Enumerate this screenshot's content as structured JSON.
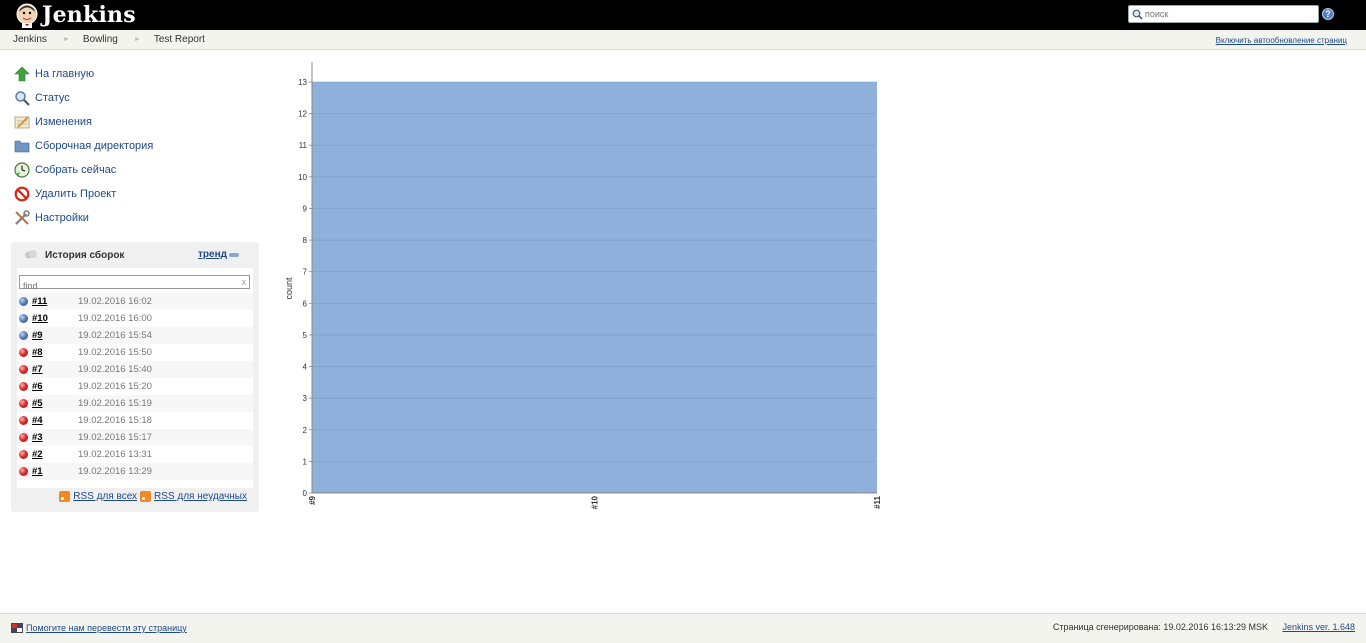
{
  "header": {
    "logo_text": "Jenkins",
    "search_placeholder": "поиск",
    "help_label": "?"
  },
  "breadcrumb": {
    "items": [
      "Jenkins",
      "Bowling",
      "Test Report"
    ],
    "separator": "►",
    "auto_refresh": "Включить автообновление страниц"
  },
  "tasks": [
    {
      "label": "На главную",
      "icon": "up-arrow-icon"
    },
    {
      "label": "Статус",
      "icon": "magnifier-icon"
    },
    {
      "label": "Изменения",
      "icon": "notepad-icon"
    },
    {
      "label": "Сборочная директория",
      "icon": "folder-icon"
    },
    {
      "label": "Собрать сейчас",
      "icon": "clock-icon"
    },
    {
      "label": "Удалить Проект",
      "icon": "no-entry-icon"
    },
    {
      "label": "Настройки",
      "icon": "tools-icon"
    }
  ],
  "history": {
    "title": "История сборок",
    "trend_label": "тренд",
    "find_placeholder": "find",
    "find_clear": "x",
    "builds": [
      {
        "number": "#11",
        "time": "19.02.2016 16:02",
        "status": "blue"
      },
      {
        "number": "#10",
        "time": "19.02.2016 16:00",
        "status": "blue"
      },
      {
        "number": "#9",
        "time": "19.02.2016 15:54",
        "status": "blue"
      },
      {
        "number": "#8",
        "time": "19.02.2016 15:50",
        "status": "red"
      },
      {
        "number": "#7",
        "time": "19.02.2016 15:40",
        "status": "red"
      },
      {
        "number": "#6",
        "time": "19.02.2016 15:20",
        "status": "red"
      },
      {
        "number": "#5",
        "time": "19.02.2016 15:19",
        "status": "red"
      },
      {
        "number": "#4",
        "time": "19.02.2016 15:18",
        "status": "red"
      },
      {
        "number": "#3",
        "time": "19.02.2016 15:17",
        "status": "red"
      },
      {
        "number": "#2",
        "time": "19.02.2016 13:31",
        "status": "red"
      },
      {
        "number": "#1",
        "time": "19.02.2016 13:29",
        "status": "red"
      }
    ],
    "rss_all": "RSS для всех",
    "rss_failed": "RSS для неудачных"
  },
  "chart_data": {
    "type": "area",
    "x": [
      "#9",
      "#10",
      "#11"
    ],
    "series": [
      {
        "values": [
          13,
          13,
          13
        ]
      }
    ],
    "ylabel": "count",
    "ylim": [
      0,
      13
    ],
    "yticks": [
      0,
      1,
      2,
      3,
      4,
      5,
      6,
      7,
      8,
      9,
      10,
      11,
      12,
      13
    ],
    "grid": true,
    "fill_color": "#8eb0da"
  },
  "footer": {
    "translate_link": "Помогите нам перевести эту страницу",
    "generated": "Страница сгенерирована: 19.02.2016 16:13:29 MSK",
    "version_link": "Jenkins ver. 1.648"
  }
}
